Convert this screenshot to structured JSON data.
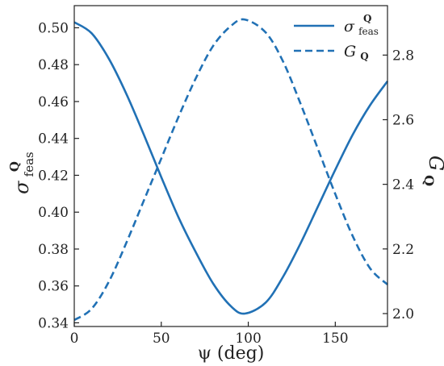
{
  "chart_data": {
    "type": "line",
    "x_axis": {
      "label": "ψ (deg)",
      "range": [
        0,
        180
      ],
      "ticks": [
        0,
        50,
        100,
        150
      ],
      "tick_labels": [
        "0",
        "50",
        "100",
        "150"
      ]
    },
    "y_left": {
      "label_main": "σ",
      "label_sup": "Q",
      "label_sub": "feas",
      "range": [
        0.338,
        0.512
      ],
      "ticks": [
        0.34,
        0.36,
        0.38,
        0.4,
        0.42,
        0.44,
        0.46,
        0.48,
        0.5
      ],
      "tick_labels": [
        "0.34",
        "0.36",
        "0.38",
        "0.40",
        "0.42",
        "0.44",
        "0.46",
        "0.48",
        "0.50"
      ]
    },
    "y_right": {
      "label_main": "G",
      "label_sub": "Q",
      "range": [
        1.96,
        2.953
      ],
      "ticks": [
        2.0,
        2.2,
        2.4,
        2.6,
        2.8
      ],
      "tick_labels": [
        "2.0",
        "2.2",
        "2.4",
        "2.6",
        "2.8"
      ]
    },
    "series": [
      {
        "name": "σfeasQ",
        "legend_main": "σ",
        "legend_sup": "Q",
        "legend_sub": "feas",
        "axis": "left",
        "style": "solid",
        "x": [
          0,
          10,
          20,
          30,
          40,
          50,
          60,
          70,
          80,
          90,
          98,
          110,
          120,
          130,
          140,
          150,
          160,
          170,
          180
        ],
        "y": [
          0.503,
          0.497,
          0.483,
          0.464,
          0.442,
          0.419,
          0.397,
          0.378,
          0.361,
          0.349,
          0.345,
          0.351,
          0.365,
          0.383,
          0.403,
          0.423,
          0.442,
          0.458,
          0.471
        ]
      },
      {
        "name": "GQ",
        "legend_main": "G",
        "legend_sub": "Q",
        "axis": "right",
        "style": "dashed",
        "x": [
          0,
          10,
          20,
          30,
          40,
          50,
          60,
          70,
          80,
          90,
          98,
          110,
          120,
          130,
          140,
          150,
          160,
          170,
          180
        ],
        "y": [
          1.98,
          2.015,
          2.1,
          2.22,
          2.35,
          2.48,
          2.61,
          2.73,
          2.83,
          2.89,
          2.91,
          2.87,
          2.78,
          2.65,
          2.51,
          2.37,
          2.24,
          2.14,
          2.09
        ]
      }
    ],
    "legend_position": "top-right",
    "grid": false,
    "line_color": "#2171b5"
  }
}
